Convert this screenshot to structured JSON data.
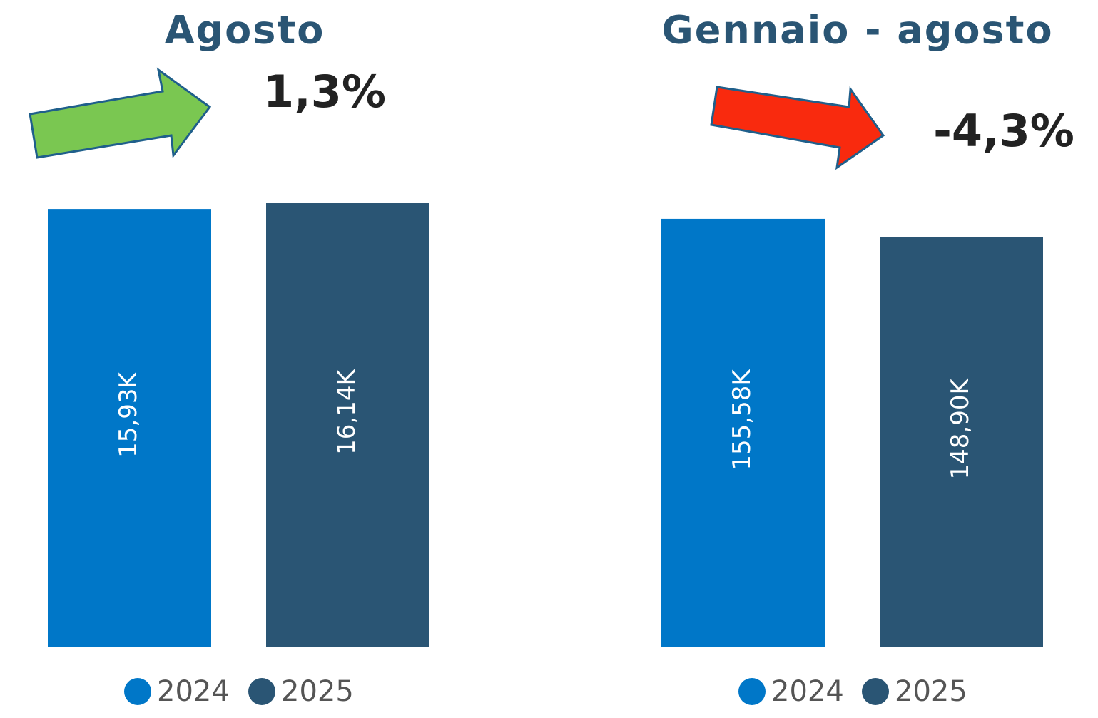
{
  "chart_data": [
    {
      "type": "bar",
      "title": "Agosto",
      "annotation": "1,3%",
      "categories": [
        null
      ],
      "series": [
        {
          "name": "2024",
          "color": "#0077c8",
          "values": [
            15930
          ],
          "value_labels": [
            "15,93K"
          ]
        },
        {
          "name": "2025",
          "color": "#2a5574",
          "values": [
            16140
          ],
          "value_labels": [
            "16,14K"
          ]
        }
      ],
      "ylim": [
        0,
        16270
      ]
    },
    {
      "type": "bar",
      "title": "Gennaio - agosto",
      "annotation": "-4,3%",
      "categories": [
        null
      ],
      "series": [
        {
          "name": "2024",
          "color": "#0077c8",
          "values": [
            155580
          ],
          "value_labels": [
            "155,58K"
          ]
        },
        {
          "name": "2025",
          "color": "#2a5574",
          "values": [
            148900
          ],
          "value_labels": [
            "148,90K"
          ]
        }
      ],
      "ylim": [
        0,
        162560
      ]
    }
  ]
}
